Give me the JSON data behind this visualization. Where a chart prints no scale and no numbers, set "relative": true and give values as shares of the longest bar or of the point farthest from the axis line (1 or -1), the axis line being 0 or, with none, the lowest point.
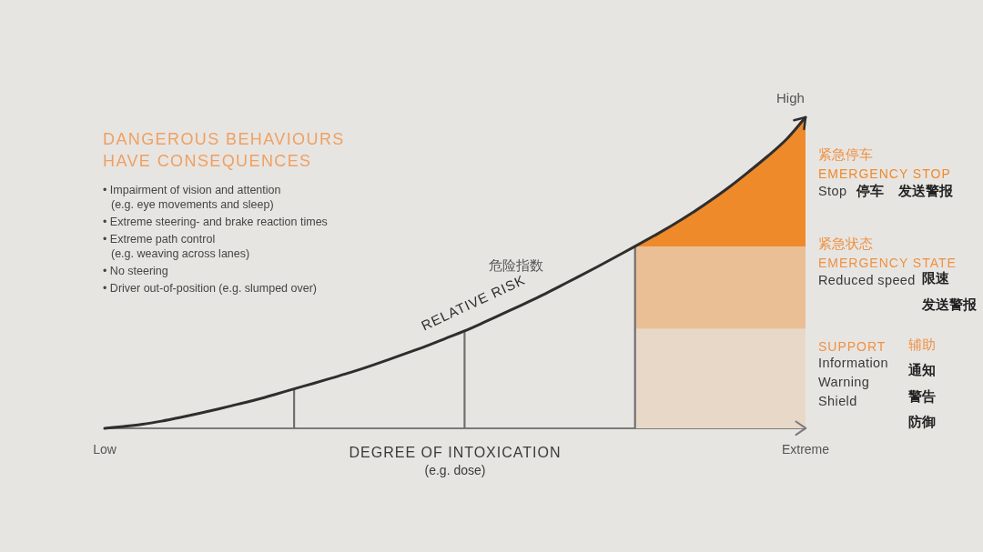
{
  "chart_data": {
    "type": "line",
    "title": "DANGEROUS BEHAVIOURS\nHAVE CONSEQUENCES",
    "xlabel": "DEGREE OF INTOXICATION\n(e.g. dose)",
    "relative": true,
    "categories": [
      "Low",
      null,
      null,
      null,
      null,
      null,
      null,
      null,
      null,
      null,
      null,
      null,
      null,
      null,
      null,
      null,
      null,
      null,
      null,
      null,
      null,
      null,
      null,
      null,
      null,
      null,
      null,
      null,
      null,
      null,
      null,
      null,
      null,
      null,
      null,
      null,
      null,
      "Extreme"
    ],
    "series": [
      {
        "name": "RELATIVE RISK",
        "color": "#2e2e2e",
        "values": [
          0,
          0.006,
          0.013,
          0.023,
          0.035,
          0.048,
          0.062,
          0.077,
          0.092,
          0.109,
          0.127,
          0.144,
          0.162,
          0.18,
          0.2,
          0.221,
          0.243,
          0.265,
          0.289,
          0.313,
          0.34,
          0.368,
          0.396,
          0.425,
          0.456,
          0.487,
          0.519,
          0.552,
          0.585,
          0.619,
          0.654,
          0.692,
          0.733,
          0.777,
          0.825,
          0.875,
          0.93,
          1
        ]
      },
      {
        "type": "bar",
        "color": "#6e6e6e",
        "values": [
          null,
          null,
          null,
          null,
          null,
          null,
          null,
          null,
          null,
          null,
          0.127,
          null,
          null,
          null,
          null,
          null,
          null,
          null,
          null,
          0.313,
          null,
          null,
          null,
          null,
          null,
          null,
          null,
          null,
          0.585,
          null,
          null,
          null,
          null,
          null,
          null,
          null,
          null,
          null
        ]
      },
      {
        "name": "EMERGENCY STOP",
        "type": "area",
        "color": "#ef8a2b",
        "values": [
          null,
          null,
          null,
          null,
          null,
          null,
          null,
          null,
          null,
          null,
          null,
          null,
          null,
          null,
          null,
          null,
          null,
          null,
          null,
          null,
          null,
          null,
          null,
          null,
          null,
          null,
          null,
          null,
          0.585,
          0.619,
          0.654,
          0.692,
          0.733,
          0.777,
          0.825,
          0.875,
          0.93,
          1
        ]
      },
      {
        "type": "area",
        "color": "#eabf95",
        "values": [
          null,
          null,
          null,
          null,
          null,
          null,
          null,
          null,
          null,
          null,
          null,
          null,
          null,
          null,
          null,
          null,
          null,
          null,
          null,
          null,
          null,
          null,
          null,
          null,
          null,
          null,
          null,
          null,
          0.585,
          0.585,
          0.585,
          0.585,
          0.585,
          0.585,
          0.585,
          0.585,
          0.585,
          0.585
        ]
      },
      {
        "type": "area",
        "color": "#e8d8c8",
        "values": [
          null,
          null,
          null,
          null,
          null,
          null,
          null,
          null,
          null,
          null,
          null,
          null,
          null,
          null,
          null,
          null,
          null,
          null,
          null,
          null,
          null,
          null,
          null,
          null,
          null,
          null,
          null,
          null,
          0.32,
          0.32,
          0.32,
          0.32,
          0.32,
          0.32,
          0.32,
          0.32,
          0.32,
          0.32
        ]
      }
    ],
    "annotations": [
      "• Impairment of vision and attention\n(e.g. eye movements and sleep)",
      "• Extreme steering- and brake reaction times",
      "• Extreme path control\n(e.g. weaving across lanes)",
      "• No steering",
      "• Driver out-of-position (e.g. slumped over)",
      "危险指数",
      "High",
      "紧急停车",
      "Stop",
      "停车",
      "发送警报",
      "紧急状态",
      "EMERGENCY STATE",
      "Reduced speed",
      "限速",
      "发送警报",
      "SUPPORT",
      "辅助",
      "Information",
      "Warning",
      "Shield",
      "通知",
      "警告",
      "防御"
    ]
  }
}
